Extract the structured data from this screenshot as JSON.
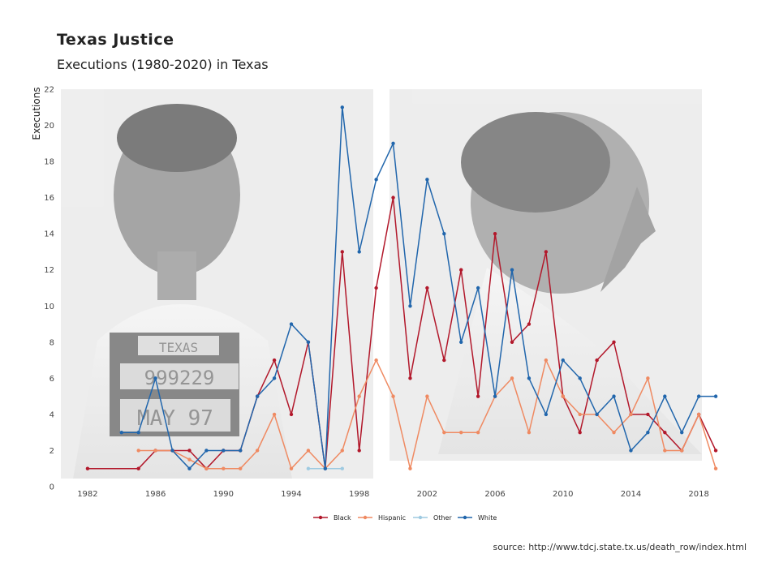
{
  "header": {
    "title": "Texas Justice",
    "subtitle": "Executions (1980-2020) in Texas"
  },
  "source": "source: http://www.tdcj.state.tx.us/death_row/index.html",
  "background_photo": {
    "placard_lines": [
      "TEXAS",
      "999229",
      "MAY 97"
    ]
  },
  "chart_data": {
    "type": "line",
    "ylabel": "Executions",
    "xlabel": "",
    "xlim": [
      1981,
      2020
    ],
    "ylim": [
      0,
      22
    ],
    "xticks": [
      1982,
      1986,
      1990,
      1994,
      1998,
      2002,
      2006,
      2010,
      2014,
      2018
    ],
    "yticks": [
      0,
      2,
      4,
      6,
      8,
      10,
      12,
      14,
      16,
      18,
      20,
      22
    ],
    "legend_position": "bottom",
    "grid": false,
    "series": [
      {
        "name": "Black",
        "color": "#b2182b",
        "x": [
          1982,
          1985,
          1986,
          1987,
          1988,
          1989,
          1990,
          1991,
          1992,
          1993,
          1994,
          1995,
          1996,
          1997,
          1998,
          1999,
          2000,
          2001,
          2002,
          2003,
          2004,
          2005,
          2006,
          2007,
          2008,
          2009,
          2010,
          2011,
          2012,
          2013,
          2014,
          2015,
          2016,
          2017,
          2018,
          2019
        ],
        "y": [
          1,
          1,
          2,
          2,
          2,
          1,
          2,
          2,
          5,
          7,
          4,
          8,
          1,
          13,
          2,
          11,
          16,
          6,
          11,
          7,
          12,
          5,
          14,
          8,
          9,
          13,
          5,
          3,
          7,
          8,
          4,
          4,
          3,
          2,
          4,
          2
        ]
      },
      {
        "name": "Hispanic",
        "color": "#ef8a62",
        "x": [
          1985,
          1986,
          1987,
          1988,
          1989,
          1990,
          1991,
          1992,
          1993,
          1994,
          1995,
          1996,
          1997,
          1998,
          1999,
          2000,
          2001,
          2002,
          2003,
          2004,
          2005,
          2006,
          2007,
          2008,
          2009,
          2010,
          2011,
          2012,
          2013,
          2014,
          2015,
          2016,
          2017,
          2018,
          2019
        ],
        "y": [
          2,
          2,
          2,
          1.5,
          1,
          1,
          1,
          2,
          4,
          1,
          2,
          1,
          2,
          5,
          7,
          5,
          1,
          5,
          3,
          3,
          3,
          5,
          6,
          3,
          7,
          5,
          4,
          4,
          3,
          4,
          6,
          2,
          2,
          4,
          1
        ]
      },
      {
        "name": "Other",
        "color": "#9ecae1",
        "x": [
          1995,
          1996,
          1997
        ],
        "y": [
          1,
          1,
          1
        ]
      },
      {
        "name": "White",
        "color": "#2166ac",
        "x": [
          1984,
          1985,
          1986,
          1987,
          1988,
          1989,
          1990,
          1991,
          1992,
          1993,
          1994,
          1995,
          1996,
          1997,
          1998,
          1999,
          2000,
          2001,
          2002,
          2003,
          2004,
          2005,
          2006,
          2007,
          2008,
          2009,
          2010,
          2011,
          2012,
          2013,
          2014,
          2015,
          2016,
          2017,
          2018,
          2019
        ],
        "y": [
          3,
          3,
          6,
          2,
          1,
          2,
          2,
          2,
          5,
          6,
          9,
          8,
          1,
          21,
          13,
          17,
          19,
          10,
          17,
          14,
          8,
          11,
          5,
          12,
          6,
          4,
          7,
          6,
          4,
          5,
          2,
          3,
          5,
          3,
          5,
          5
        ]
      }
    ]
  }
}
